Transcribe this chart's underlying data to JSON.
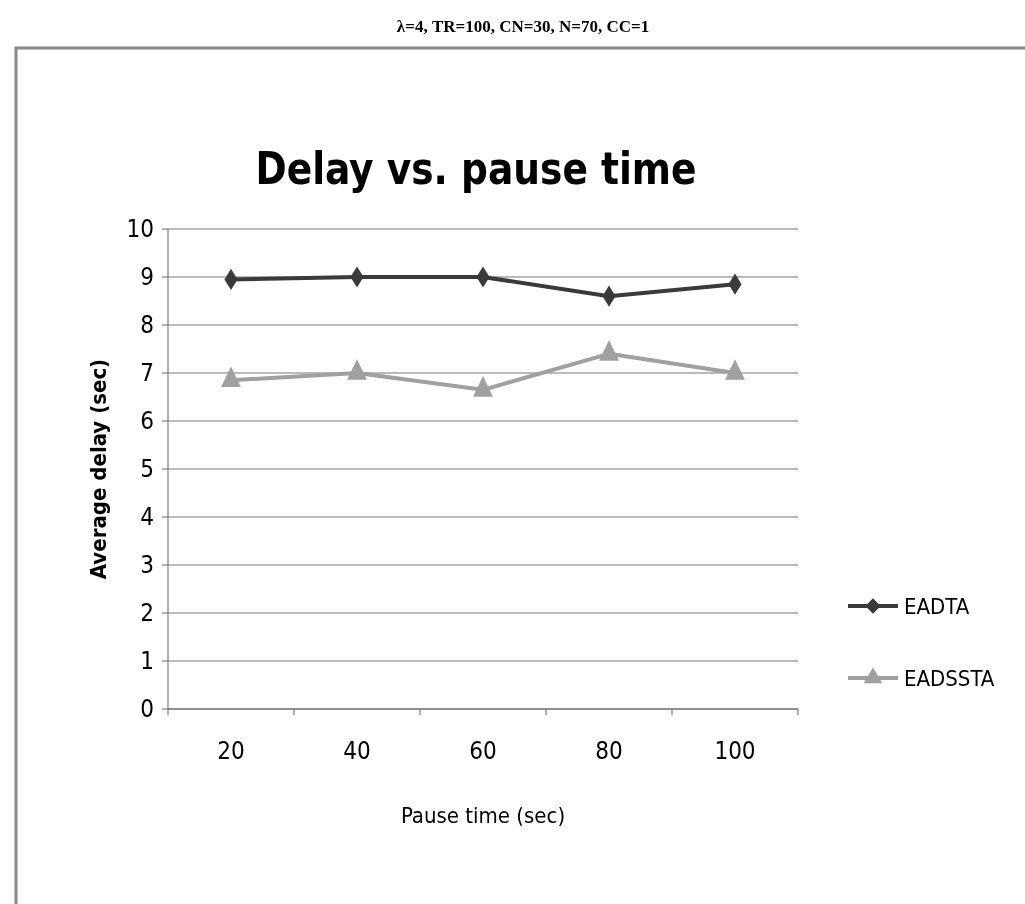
{
  "chart_data": {
    "type": "line",
    "title": "Delay vs. pause time",
    "subtitle": "λ=4, TR=100, CN=30, N=70, CC=1",
    "xlabel": "Pause time (sec)",
    "ylabel": "Average delay (sec)",
    "categories": [
      "20",
      "40",
      "60",
      "80",
      "100"
    ],
    "series": [
      {
        "name": "EADTA",
        "color": "#3a3a3a",
        "marker": "diamond",
        "values": [
          8.95,
          9.0,
          9.0,
          8.6,
          8.85
        ]
      },
      {
        "name": "EADSSTA",
        "color": "#a0a0a0",
        "marker": "triangle",
        "values": [
          6.85,
          7.0,
          6.65,
          7.4,
          7.0
        ]
      }
    ],
    "ylim": [
      0,
      10
    ],
    "yticks": [
      0,
      1,
      2,
      3,
      4,
      5,
      6,
      7,
      8,
      9,
      10
    ],
    "grid": "y",
    "legend": "right"
  }
}
